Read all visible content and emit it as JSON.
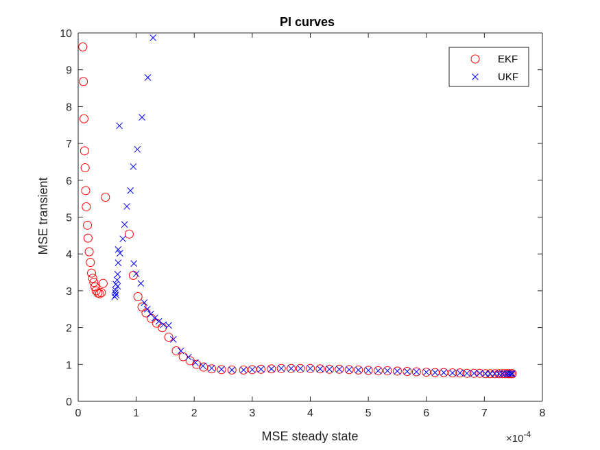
{
  "chart_data": {
    "type": "scatter",
    "title": "PI curves",
    "xlabel": "MSE steady state",
    "ylabel": "MSE transient",
    "x_multiplier": {
      "base": "×10",
      "exponent": "-4"
    },
    "xlim": [
      0,
      8
    ],
    "ylim": [
      0,
      10
    ],
    "xticks": [
      "0",
      "1",
      "2",
      "3",
      "4",
      "5",
      "6",
      "7",
      "8"
    ],
    "yticks": [
      "0",
      "1",
      "2",
      "3",
      "4",
      "5",
      "6",
      "7",
      "8",
      "9",
      "10"
    ],
    "grid": false,
    "legend_position": "top-right",
    "series": [
      {
        "name": "EKF",
        "marker": "circle",
        "color": "#ff0000",
        "points": [
          [
            0.08,
            9.62
          ],
          [
            0.09,
            8.68
          ],
          [
            0.1,
            7.67
          ],
          [
            0.11,
            6.8
          ],
          [
            0.12,
            6.34
          ],
          [
            0.13,
            5.72
          ],
          [
            0.14,
            5.28
          ],
          [
            0.16,
            4.78
          ],
          [
            0.17,
            4.43
          ],
          [
            0.19,
            4.06
          ],
          [
            0.21,
            3.77
          ],
          [
            0.23,
            3.48
          ],
          [
            0.25,
            3.34
          ],
          [
            0.27,
            3.23
          ],
          [
            0.29,
            3.11
          ],
          [
            0.31,
            3.0
          ],
          [
            0.34,
            2.94
          ],
          [
            0.37,
            2.92
          ],
          [
            0.4,
            2.95
          ],
          [
            0.43,
            3.2
          ],
          [
            0.47,
            5.54
          ],
          [
            0.95,
            3.42
          ],
          [
            0.88,
            4.54
          ],
          [
            1.03,
            2.84
          ],
          [
            1.1,
            2.56
          ],
          [
            1.17,
            2.4
          ],
          [
            1.26,
            2.25
          ],
          [
            1.35,
            2.12
          ],
          [
            1.45,
            2.0
          ],
          [
            1.56,
            1.74
          ],
          [
            1.69,
            1.37
          ],
          [
            1.81,
            1.21
          ],
          [
            1.93,
            1.1
          ],
          [
            2.04,
            1.0
          ],
          [
            2.16,
            0.93
          ],
          [
            2.3,
            0.88
          ],
          [
            2.47,
            0.86
          ],
          [
            2.65,
            0.85
          ],
          [
            2.85,
            0.85
          ],
          [
            3.0,
            0.86
          ],
          [
            3.15,
            0.87
          ],
          [
            3.33,
            0.88
          ],
          [
            3.5,
            0.89
          ],
          [
            3.67,
            0.89
          ],
          [
            3.83,
            0.89
          ],
          [
            4.0,
            0.89
          ],
          [
            4.17,
            0.88
          ],
          [
            4.33,
            0.87
          ],
          [
            4.5,
            0.87
          ],
          [
            4.67,
            0.86
          ],
          [
            4.83,
            0.85
          ],
          [
            5.0,
            0.84
          ],
          [
            5.17,
            0.83
          ],
          [
            5.33,
            0.83
          ],
          [
            5.5,
            0.82
          ],
          [
            5.67,
            0.81
          ],
          [
            5.83,
            0.8
          ],
          [
            6.0,
            0.79
          ],
          [
            6.15,
            0.78
          ],
          [
            6.3,
            0.78
          ],
          [
            6.45,
            0.77
          ],
          [
            6.58,
            0.77
          ],
          [
            6.7,
            0.76
          ],
          [
            6.82,
            0.76
          ],
          [
            6.92,
            0.76
          ],
          [
            7.02,
            0.75
          ],
          [
            7.1,
            0.75
          ],
          [
            7.18,
            0.75
          ],
          [
            7.25,
            0.75
          ],
          [
            7.31,
            0.75
          ],
          [
            7.36,
            0.75
          ],
          [
            7.4,
            0.75
          ],
          [
            7.43,
            0.75
          ],
          [
            7.46,
            0.75
          ],
          [
            7.48,
            0.75
          ]
        ]
      },
      {
        "name": "UKF",
        "marker": "x",
        "color": "#0000ff",
        "points": [
          [
            1.29,
            9.87
          ],
          [
            1.2,
            8.79
          ],
          [
            1.1,
            7.71
          ],
          [
            0.71,
            7.48
          ],
          [
            1.02,
            6.84
          ],
          [
            0.95,
            6.37
          ],
          [
            0.9,
            5.72
          ],
          [
            0.84,
            5.29
          ],
          [
            0.8,
            4.8
          ],
          [
            0.77,
            4.41
          ],
          [
            0.69,
            4.12
          ],
          [
            0.72,
            4.02
          ],
          [
            0.69,
            3.76
          ],
          [
            0.96,
            3.74
          ],
          [
            1.0,
            3.46
          ],
          [
            0.68,
            3.45
          ],
          [
            0.67,
            3.29
          ],
          [
            1.08,
            3.2
          ],
          [
            0.65,
            3.18
          ],
          [
            0.68,
            3.12
          ],
          [
            0.64,
            3.02
          ],
          [
            0.64,
            2.95
          ],
          [
            0.65,
            2.89
          ],
          [
            0.63,
            2.84
          ],
          [
            1.14,
            2.68
          ],
          [
            1.19,
            2.5
          ],
          [
            1.25,
            2.37
          ],
          [
            1.32,
            2.26
          ],
          [
            1.39,
            2.17
          ],
          [
            1.47,
            2.08
          ],
          [
            1.56,
            2.06
          ],
          [
            1.64,
            1.68
          ],
          [
            1.77,
            1.37
          ],
          [
            1.9,
            1.2
          ],
          [
            2.02,
            1.05
          ],
          [
            2.15,
            0.96
          ],
          [
            2.3,
            0.9
          ],
          [
            2.47,
            0.87
          ],
          [
            2.65,
            0.85
          ],
          [
            2.85,
            0.85
          ],
          [
            3.0,
            0.86
          ],
          [
            3.15,
            0.87
          ],
          [
            3.33,
            0.88
          ],
          [
            3.5,
            0.89
          ],
          [
            3.67,
            0.89
          ],
          [
            3.83,
            0.89
          ],
          [
            4.0,
            0.89
          ],
          [
            4.17,
            0.88
          ],
          [
            4.33,
            0.87
          ],
          [
            4.5,
            0.87
          ],
          [
            4.67,
            0.86
          ],
          [
            4.83,
            0.85
          ],
          [
            5.0,
            0.84
          ],
          [
            5.17,
            0.83
          ],
          [
            5.33,
            0.83
          ],
          [
            5.5,
            0.82
          ],
          [
            5.67,
            0.81
          ],
          [
            5.83,
            0.8
          ],
          [
            6.0,
            0.79
          ],
          [
            6.15,
            0.78
          ],
          [
            6.3,
            0.78
          ],
          [
            6.45,
            0.77
          ],
          [
            6.58,
            0.77
          ],
          [
            6.7,
            0.76
          ],
          [
            6.82,
            0.76
          ],
          [
            6.92,
            0.76
          ],
          [
            7.02,
            0.75
          ],
          [
            7.1,
            0.75
          ],
          [
            7.18,
            0.75
          ],
          [
            7.25,
            0.75
          ],
          [
            7.31,
            0.75
          ],
          [
            7.36,
            0.75
          ],
          [
            7.4,
            0.75
          ],
          [
            7.43,
            0.75
          ],
          [
            7.46,
            0.75
          ],
          [
            7.48,
            0.75
          ]
        ]
      }
    ]
  }
}
